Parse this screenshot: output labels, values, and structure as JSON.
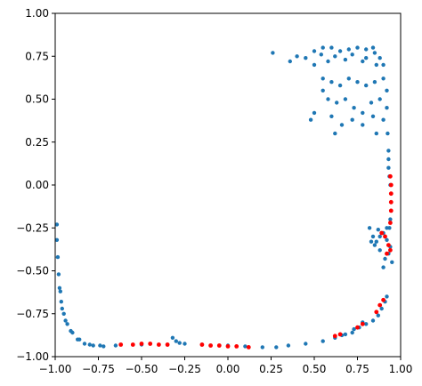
{
  "chart_data": {
    "type": "scatter",
    "title": "",
    "xlabel": "",
    "ylabel": "",
    "xlim": [
      -1.0,
      1.0
    ],
    "ylim": [
      -1.0,
      1.0
    ],
    "grid": false,
    "legend": "none",
    "x_ticks": [
      "−1.00",
      "−0.75",
      "−0.50",
      "−0.25",
      "0.00",
      "0.25",
      "0.50",
      "0.75",
      "1.00"
    ],
    "y_ticks": [
      "1.00",
      "0.75",
      "0.50",
      "0.25",
      "0.00",
      "−0.25",
      "−0.50",
      "−0.75",
      "−1.00"
    ],
    "x_tick_values": [
      -1.0,
      -0.75,
      -0.5,
      -0.25,
      0.0,
      0.25,
      0.5,
      0.75,
      1.0
    ],
    "y_tick_values": [
      1.0,
      0.75,
      0.5,
      0.25,
      0.0,
      -0.25,
      -0.5,
      -0.75,
      -1.0
    ],
    "series": [
      {
        "color": "#1f77b4",
        "points": [
          [
            -0.99,
            -0.23
          ],
          [
            -0.99,
            -0.32
          ],
          [
            -0.985,
            -0.42
          ],
          [
            -0.98,
            -0.52
          ],
          [
            -0.975,
            -0.6
          ],
          [
            -0.965,
            -0.68
          ],
          [
            -0.95,
            -0.75
          ],
          [
            -0.93,
            -0.81
          ],
          [
            -0.9,
            -0.86
          ],
          [
            -0.87,
            -0.9
          ],
          [
            -0.83,
            -0.925
          ],
          [
            -0.78,
            -0.935
          ],
          [
            -0.72,
            -0.94
          ],
          [
            -0.97,
            -0.62
          ],
          [
            -0.96,
            -0.72
          ],
          [
            -0.94,
            -0.79
          ],
          [
            -0.91,
            -0.85
          ],
          [
            -0.86,
            -0.9
          ],
          [
            -0.8,
            -0.93
          ],
          [
            -0.74,
            -0.935
          ],
          [
            -0.65,
            -0.935
          ],
          [
            -0.5,
            -0.93
          ],
          [
            -0.35,
            -0.93
          ],
          [
            -0.25,
            -0.925
          ],
          [
            -0.15,
            -0.93
          ],
          [
            0.0,
            -0.935
          ],
          [
            0.1,
            -0.94
          ],
          [
            0.2,
            -0.945
          ],
          [
            0.28,
            -0.945
          ],
          [
            -0.32,
            -0.89
          ],
          [
            -0.3,
            -0.91
          ],
          [
            -0.28,
            -0.92
          ],
          [
            0.35,
            -0.935
          ],
          [
            0.45,
            -0.925
          ],
          [
            0.55,
            -0.91
          ],
          [
            0.62,
            -0.89
          ],
          [
            0.68,
            -0.87
          ],
          [
            0.72,
            -0.86
          ],
          [
            0.76,
            -0.83
          ],
          [
            0.8,
            -0.81
          ],
          [
            0.84,
            -0.79
          ],
          [
            0.87,
            -0.76
          ],
          [
            0.89,
            -0.72
          ],
          [
            0.91,
            -0.68
          ],
          [
            0.92,
            -0.65
          ],
          [
            0.78,
            -0.8
          ],
          [
            0.73,
            -0.84
          ],
          [
            0.66,
            -0.875
          ],
          [
            0.93,
            0.1
          ],
          [
            0.935,
            0.05
          ],
          [
            0.94,
            0.0
          ],
          [
            0.945,
            -0.05
          ],
          [
            0.945,
            -0.1
          ],
          [
            0.945,
            -0.15
          ],
          [
            0.94,
            -0.2
          ],
          [
            0.935,
            -0.25
          ],
          [
            0.93,
            0.2
          ],
          [
            0.925,
            0.3
          ],
          [
            0.93,
            0.15
          ],
          [
            0.82,
            -0.25
          ],
          [
            0.84,
            -0.3
          ],
          [
            0.86,
            -0.33
          ],
          [
            0.88,
            -0.3
          ],
          [
            0.9,
            -0.28
          ],
          [
            0.92,
            -0.32
          ],
          [
            0.94,
            -0.36
          ],
          [
            0.93,
            -0.4
          ],
          [
            0.91,
            -0.43
          ],
          [
            0.88,
            -0.38
          ],
          [
            0.85,
            -0.35
          ],
          [
            0.83,
            -0.33
          ],
          [
            0.87,
            -0.26
          ],
          [
            0.92,
            -0.25
          ],
          [
            0.95,
            -0.45
          ],
          [
            0.9,
            -0.48
          ],
          [
            0.5,
            0.78
          ],
          [
            0.55,
            0.8
          ],
          [
            0.6,
            0.8
          ],
          [
            0.65,
            0.78
          ],
          [
            0.7,
            0.79
          ],
          [
            0.75,
            0.8
          ],
          [
            0.8,
            0.79
          ],
          [
            0.85,
            0.77
          ],
          [
            0.88,
            0.74
          ],
          [
            0.9,
            0.7
          ],
          [
            0.45,
            0.74
          ],
          [
            0.5,
            0.7
          ],
          [
            0.58,
            0.72
          ],
          [
            0.68,
            0.73
          ],
          [
            0.78,
            0.72
          ],
          [
            0.86,
            0.7
          ],
          [
            0.4,
            0.75
          ],
          [
            0.36,
            0.72
          ],
          [
            0.62,
            0.75
          ],
          [
            0.72,
            0.76
          ],
          [
            0.8,
            0.74
          ],
          [
            0.26,
            0.77
          ],
          [
            0.54,
            0.76
          ],
          [
            0.84,
            0.8
          ],
          [
            0.55,
            0.62
          ],
          [
            0.6,
            0.6
          ],
          [
            0.65,
            0.58
          ],
          [
            0.7,
            0.62
          ],
          [
            0.75,
            0.6
          ],
          [
            0.8,
            0.58
          ],
          [
            0.85,
            0.6
          ],
          [
            0.9,
            0.62
          ],
          [
            0.58,
            0.5
          ],
          [
            0.63,
            0.48
          ],
          [
            0.68,
            0.5
          ],
          [
            0.73,
            0.45
          ],
          [
            0.78,
            0.42
          ],
          [
            0.83,
            0.48
          ],
          [
            0.88,
            0.5
          ],
          [
            0.92,
            0.45
          ],
          [
            0.6,
            0.4
          ],
          [
            0.66,
            0.35
          ],
          [
            0.72,
            0.38
          ],
          [
            0.78,
            0.35
          ],
          [
            0.84,
            0.4
          ],
          [
            0.9,
            0.38
          ],
          [
            0.5,
            0.42
          ],
          [
            0.48,
            0.38
          ],
          [
            0.55,
            0.55
          ],
          [
            0.62,
            0.3
          ],
          [
            0.92,
            0.55
          ],
          [
            0.86,
            0.3
          ]
        ]
      },
      {
        "color": "#ff0000",
        "points": [
          [
            -0.62,
            -0.93
          ],
          [
            -0.55,
            -0.93
          ],
          [
            -0.5,
            -0.925
          ],
          [
            -0.45,
            -0.925
          ],
          [
            -0.4,
            -0.93
          ],
          [
            -0.35,
            -0.93
          ],
          [
            -0.15,
            -0.93
          ],
          [
            -0.1,
            -0.935
          ],
          [
            -0.05,
            -0.935
          ],
          [
            0.0,
            -0.94
          ],
          [
            0.05,
            -0.94
          ],
          [
            0.12,
            -0.945
          ],
          [
            0.62,
            -0.88
          ],
          [
            0.65,
            -0.87
          ],
          [
            0.75,
            -0.83
          ],
          [
            0.78,
            -0.81
          ],
          [
            0.86,
            -0.74
          ],
          [
            0.88,
            -0.7
          ],
          [
            0.9,
            -0.67
          ],
          [
            0.94,
            0.05
          ],
          [
            0.945,
            0.0
          ],
          [
            0.945,
            -0.05
          ],
          [
            0.945,
            -0.1
          ],
          [
            0.945,
            -0.15
          ],
          [
            0.94,
            -0.22
          ],
          [
            0.89,
            -0.28
          ],
          [
            0.91,
            -0.3
          ],
          [
            0.93,
            -0.35
          ],
          [
            0.94,
            -0.38
          ],
          [
            0.92,
            -0.4
          ]
        ]
      }
    ]
  }
}
